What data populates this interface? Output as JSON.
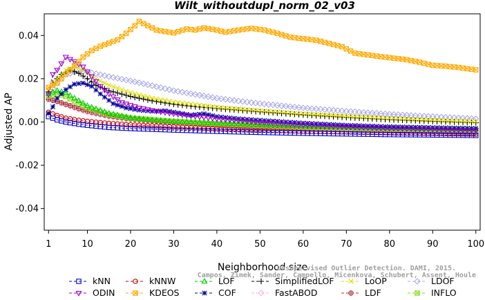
{
  "chart_data": {
    "type": "line",
    "title": "Wilt_withoutdupl_norm_02_v03",
    "xlabel": "Neighborhood size",
    "ylabel": "Adjusted AP",
    "xlim": [
      0,
      101
    ],
    "ylim": [
      -0.05,
      0.05
    ],
    "xticks": [
      "1",
      "10",
      "20",
      "30",
      "40",
      "50",
      "60",
      "70",
      "80",
      "90",
      "100"
    ],
    "yticks": [
      "-0.04",
      "-0.02",
      "0.00",
      "0.02",
      "0.04"
    ],
    "grid": false,
    "legend_position": "bottom",
    "watermark": [
      "Campos, Zimek, Sander, Campello, Micenkova, Schubert, Assent, Houle",
      "Unsupervised Outlier Detection. DAMI, 2015."
    ],
    "series": [
      {
        "name": "kNN",
        "color": "#0000cc",
        "marker": "square",
        "points": [
          [
            1,
            0.0025
          ],
          [
            3,
            0.001
          ],
          [
            5,
            0.0
          ],
          [
            8,
            -0.001
          ],
          [
            10,
            -0.0015
          ],
          [
            15,
            -0.0025
          ],
          [
            20,
            -0.003
          ],
          [
            30,
            -0.0037
          ],
          [
            40,
            -0.0043
          ],
          [
            50,
            -0.0048
          ],
          [
            60,
            -0.0052
          ],
          [
            70,
            -0.0055
          ],
          [
            80,
            -0.0058
          ],
          [
            90,
            -0.006
          ],
          [
            100,
            -0.0062
          ]
        ]
      },
      {
        "name": "kNNW",
        "color": "#cc0000",
        "marker": "circle",
        "points": [
          [
            1,
            0.0045
          ],
          [
            3,
            0.003
          ],
          [
            5,
            0.0018
          ],
          [
            8,
            0.0008
          ],
          [
            10,
            0.0003
          ],
          [
            15,
            -0.0006
          ],
          [
            20,
            -0.0013
          ],
          [
            30,
            -0.0022
          ],
          [
            40,
            -0.003
          ],
          [
            50,
            -0.0036
          ],
          [
            60,
            -0.0042
          ],
          [
            70,
            -0.0046
          ],
          [
            80,
            -0.005
          ],
          [
            90,
            -0.0053
          ],
          [
            100,
            -0.0056
          ]
        ]
      },
      {
        "name": "LOF",
        "color": "#00cc00",
        "marker": "triangle",
        "points": [
          [
            1,
            0.013
          ],
          [
            3,
            0.0145
          ],
          [
            5,
            0.0135
          ],
          [
            7,
            0.011
          ],
          [
            10,
            0.0075
          ],
          [
            15,
            0.004
          ],
          [
            20,
            0.002
          ],
          [
            25,
            0.001
          ],
          [
            30,
            0.0003
          ],
          [
            40,
            -0.0005
          ],
          [
            50,
            -0.0012
          ],
          [
            60,
            -0.0018
          ],
          [
            70,
            -0.0023
          ],
          [
            80,
            -0.0027
          ],
          [
            90,
            -0.003
          ],
          [
            100,
            -0.0033
          ]
        ]
      },
      {
        "name": "SimplifiedLOF",
        "color": "#000000",
        "marker": "plus",
        "points": [
          [
            1,
            0.014
          ],
          [
            2,
            0.018
          ],
          [
            4,
            0.022
          ],
          [
            6,
            0.024
          ],
          [
            8,
            0.0225
          ],
          [
            10,
            0.02
          ],
          [
            12,
            0.017
          ],
          [
            15,
            0.0145
          ],
          [
            20,
            0.0118
          ],
          [
            25,
            0.0098
          ],
          [
            30,
            0.0082
          ],
          [
            35,
            0.0071
          ],
          [
            40,
            0.0062
          ],
          [
            50,
            0.0047
          ],
          [
            60,
            0.0033
          ],
          [
            70,
            0.0021
          ],
          [
            80,
            0.0011
          ],
          [
            90,
            0.0003
          ],
          [
            100,
            -0.0003
          ]
        ]
      },
      {
        "name": "LoOP",
        "color": "#dddd00",
        "marker": "cross",
        "points": [
          [
            1,
            0.015
          ],
          [
            3,
            0.02
          ],
          [
            5,
            0.024
          ],
          [
            7,
            0.0255
          ],
          [
            9,
            0.024
          ],
          [
            12,
            0.02
          ],
          [
            15,
            0.017
          ],
          [
            20,
            0.0135
          ],
          [
            25,
            0.011
          ],
          [
            30,
            0.0092
          ],
          [
            40,
            0.0068
          ],
          [
            50,
            0.0052
          ],
          [
            60,
            0.0038
          ],
          [
            70,
            0.0027
          ],
          [
            80,
            0.0017
          ],
          [
            90,
            0.0009
          ],
          [
            100,
            0.0002
          ]
        ]
      },
      {
        "name": "LDOF",
        "color": "#aaaaee",
        "marker": "diamond",
        "points": [
          [
            1,
            0.013
          ],
          [
            3,
            0.018
          ],
          [
            5,
            0.022
          ],
          [
            8,
            0.0235
          ],
          [
            10,
            0.0232
          ],
          [
            15,
            0.021
          ],
          [
            20,
            0.019
          ],
          [
            25,
            0.0168
          ],
          [
            30,
            0.0145
          ],
          [
            40,
            0.011
          ],
          [
            50,
            0.0085
          ],
          [
            60,
            0.0065
          ],
          [
            70,
            0.005
          ],
          [
            80,
            0.0036
          ],
          [
            90,
            0.0025
          ],
          [
            100,
            0.0015
          ]
        ]
      },
      {
        "name": "ODIN",
        "color": "#9900cc",
        "marker": "triangle-down",
        "points": [
          [
            1,
            0.013
          ],
          [
            2,
            0.022
          ],
          [
            3,
            0.024
          ],
          [
            5,
            0.03
          ],
          [
            7,
            0.028
          ],
          [
            9,
            0.0255
          ],
          [
            11,
            0.021
          ],
          [
            13,
            0.0165
          ],
          [
            15,
            0.013
          ],
          [
            18,
            0.009
          ],
          [
            22,
            0.0065
          ],
          [
            26,
            0.005
          ],
          [
            30,
            0.0038
          ],
          [
            40,
            0.0015
          ],
          [
            50,
            -0.0002
          ],
          [
            60,
            -0.0013
          ],
          [
            70,
            -0.0022
          ],
          [
            80,
            -0.0029
          ],
          [
            90,
            -0.0034
          ],
          [
            100,
            -0.0038
          ]
        ]
      },
      {
        "name": "KDEOS",
        "color": "#ffaa00",
        "marker": "square-x",
        "points": [
          [
            1,
            0.016
          ],
          [
            3,
            0.018
          ],
          [
            5,
            0.022
          ],
          [
            7,
            0.026
          ],
          [
            9,
            0.03
          ],
          [
            11,
            0.033
          ],
          [
            13,
            0.035
          ],
          [
            15,
            0.0365
          ],
          [
            17,
            0.038
          ],
          [
            19,
            0.041
          ],
          [
            21,
            0.0445
          ],
          [
            22,
            0.0465
          ],
          [
            24,
            0.0445
          ],
          [
            26,
            0.0425
          ],
          [
            28,
            0.0418
          ],
          [
            30,
            0.0412
          ],
          [
            33,
            0.043
          ],
          [
            35,
            0.0425
          ],
          [
            37,
            0.0435
          ],
          [
            40,
            0.0425
          ],
          [
            42,
            0.0415
          ],
          [
            45,
            0.0425
          ],
          [
            48,
            0.0433
          ],
          [
            51,
            0.0425
          ],
          [
            54,
            0.041
          ],
          [
            57,
            0.0392
          ],
          [
            60,
            0.0385
          ],
          [
            63,
            0.0378
          ],
          [
            66,
            0.0363
          ],
          [
            69,
            0.0348
          ],
          [
            72,
            0.0318
          ],
          [
            75,
            0.031
          ],
          [
            78,
            0.0302
          ],
          [
            81,
            0.0295
          ],
          [
            84,
            0.0288
          ],
          [
            87,
            0.0276
          ],
          [
            90,
            0.0262
          ],
          [
            93,
            0.0258
          ],
          [
            96,
            0.0252
          ],
          [
            100,
            0.0241
          ]
        ]
      },
      {
        "name": "COF",
        "color": "#000099",
        "marker": "asterisk",
        "points": [
          [
            1,
            0.004
          ],
          [
            2,
            0.007
          ],
          [
            3,
            0.011
          ],
          [
            5,
            0.015
          ],
          [
            7,
            0.0175
          ],
          [
            9,
            0.018
          ],
          [
            11,
            0.0165
          ],
          [
            13,
            0.013
          ],
          [
            16,
            0.0085
          ],
          [
            19,
            0.0065
          ],
          [
            22,
            0.0055
          ],
          [
            25,
            0.005
          ],
          [
            28,
            0.0052
          ],
          [
            31,
            0.0042
          ],
          [
            34,
            0.0032
          ],
          [
            37,
            0.0038
          ],
          [
            40,
            0.0025
          ],
          [
            45,
            0.0015
          ],
          [
            50,
            0.0008
          ],
          [
            60,
            -0.0005
          ],
          [
            70,
            -0.0015
          ],
          [
            80,
            -0.0022
          ],
          [
            90,
            -0.0026
          ],
          [
            100,
            -0.003
          ]
        ]
      },
      {
        "name": "FastABOD",
        "color": "#ffb3e6",
        "marker": "diamond",
        "points": [
          [
            1,
            0.011
          ],
          [
            3,
            0.0095
          ],
          [
            5,
            0.008
          ],
          [
            8,
            0.0058
          ],
          [
            10,
            0.0045
          ],
          [
            15,
            0.0025
          ],
          [
            20,
            0.0012
          ],
          [
            30,
            -0.0003
          ],
          [
            40,
            -0.0014
          ],
          [
            50,
            -0.0022
          ],
          [
            60,
            -0.003
          ],
          [
            70,
            -0.0036
          ],
          [
            80,
            -0.0041
          ],
          [
            90,
            -0.0045
          ],
          [
            100,
            -0.0049
          ]
        ]
      },
      {
        "name": "LDF",
        "color": "#aa3333",
        "marker": "circle-plus",
        "points": [
          [
            1,
            0.0105
          ],
          [
            3,
            0.0095
          ],
          [
            5,
            0.0082
          ],
          [
            8,
            0.0062
          ],
          [
            10,
            0.005
          ],
          [
            15,
            0.0028
          ],
          [
            20,
            0.0014
          ],
          [
            30,
            -0.0002
          ],
          [
            40,
            -0.0014
          ],
          [
            50,
            -0.0023
          ],
          [
            60,
            -0.003
          ],
          [
            70,
            -0.0036
          ],
          [
            80,
            -0.004
          ],
          [
            90,
            -0.0044
          ],
          [
            100,
            -0.0047
          ]
        ]
      },
      {
        "name": "INFLO",
        "color": "#88dd22",
        "marker": "square-x",
        "points": [
          [
            1,
            0.012
          ],
          [
            3,
            0.013
          ],
          [
            5,
            0.0118
          ],
          [
            8,
            0.0085
          ],
          [
            10,
            0.0065
          ],
          [
            15,
            0.0035
          ],
          [
            20,
            0.0018
          ],
          [
            30,
            0.0003
          ],
          [
            40,
            -0.0008
          ],
          [
            50,
            -0.0016
          ],
          [
            60,
            -0.0023
          ],
          [
            70,
            -0.0028
          ],
          [
            80,
            -0.0032
          ],
          [
            90,
            -0.0035
          ],
          [
            100,
            -0.0038
          ]
        ]
      }
    ]
  }
}
